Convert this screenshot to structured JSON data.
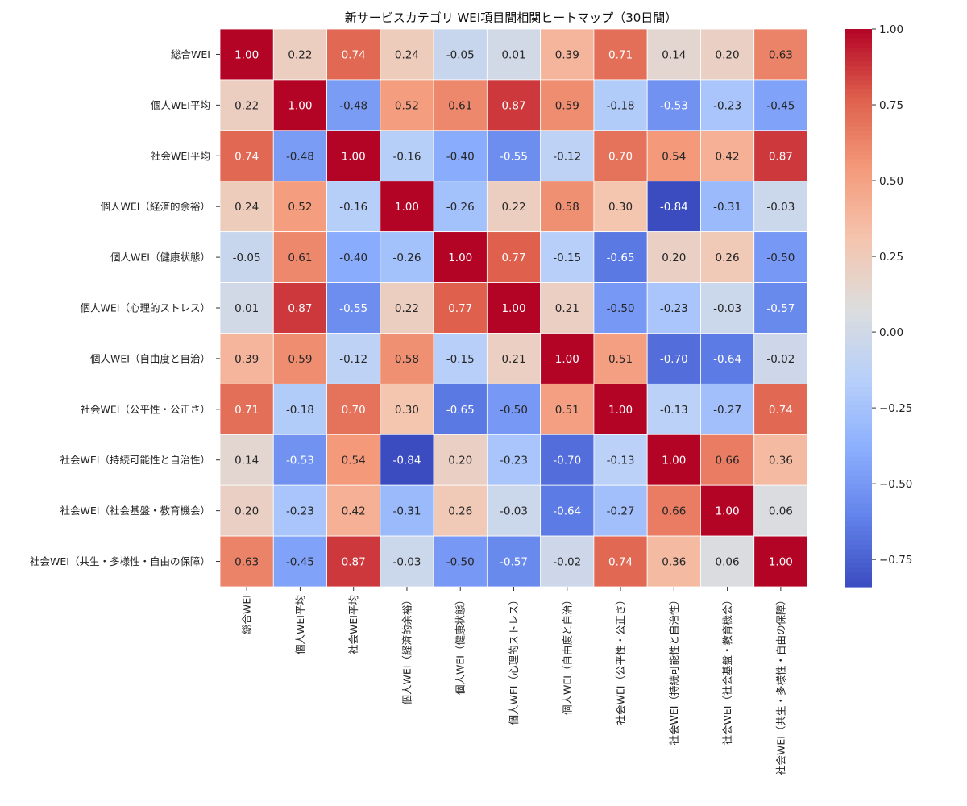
{
  "chart_data": {
    "type": "heatmap",
    "title": "新サービスカテゴリ WEI項目間相関ヒートマップ（30日間）",
    "labels": [
      "総合WEI",
      "個人WEI平均",
      "社会WEI平均",
      "個人WEI（経済的余裕）",
      "個人WEI（健康状態）",
      "個人WEI（心理的ストレス）",
      "個人WEI（自由度と自治）",
      "社会WEI（公平性・公正さ）",
      "社会WEI（持続可能性と自治性）",
      "社会WEI（社会基盤・教育機会）",
      "社会WEI（共生・多様性・自由の保障）"
    ],
    "matrix": [
      [
        1.0,
        0.22,
        0.74,
        0.24,
        -0.05,
        0.01,
        0.39,
        0.71,
        0.14,
        0.2,
        0.63
      ],
      [
        0.22,
        1.0,
        -0.48,
        0.52,
        0.61,
        0.87,
        0.59,
        -0.18,
        -0.53,
        -0.23,
        -0.45
      ],
      [
        0.74,
        -0.48,
        1.0,
        -0.16,
        -0.4,
        -0.55,
        -0.12,
        0.7,
        0.54,
        0.42,
        0.87
      ],
      [
        0.24,
        0.52,
        -0.16,
        1.0,
        -0.26,
        0.22,
        0.58,
        0.3,
        -0.84,
        -0.31,
        -0.03
      ],
      [
        -0.05,
        0.61,
        -0.4,
        -0.26,
        1.0,
        0.77,
        -0.15,
        -0.65,
        0.2,
        0.26,
        -0.5
      ],
      [
        0.01,
        0.87,
        -0.55,
        0.22,
        0.77,
        1.0,
        0.21,
        -0.5,
        -0.23,
        -0.03,
        -0.57
      ],
      [
        0.39,
        0.59,
        -0.12,
        0.58,
        -0.15,
        0.21,
        1.0,
        0.51,
        -0.7,
        -0.64,
        -0.02
      ],
      [
        0.71,
        -0.18,
        0.7,
        0.3,
        -0.65,
        -0.5,
        0.51,
        1.0,
        -0.13,
        -0.27,
        0.74
      ],
      [
        0.14,
        -0.53,
        0.54,
        -0.84,
        0.2,
        -0.23,
        -0.7,
        -0.13,
        1.0,
        0.66,
        0.36
      ],
      [
        0.2,
        -0.23,
        0.42,
        -0.31,
        0.26,
        -0.03,
        -0.64,
        -0.27,
        0.66,
        1.0,
        0.06
      ],
      [
        0.63,
        -0.45,
        0.87,
        -0.03,
        -0.5,
        -0.57,
        -0.02,
        0.74,
        0.36,
        0.06,
        1.0
      ]
    ],
    "value_format": "2 decimals",
    "colormap": "coolwarm",
    "color_range": [
      -0.84,
      1.0
    ],
    "colorbar_ticks": [
      "1.00",
      "0.75",
      "0.50",
      "0.25",
      "0.00",
      "−0.25",
      "−0.50",
      "−0.75"
    ],
    "colorbar_tick_values": [
      1.0,
      0.75,
      0.5,
      0.25,
      0.0,
      -0.25,
      -0.5,
      -0.75
    ]
  }
}
